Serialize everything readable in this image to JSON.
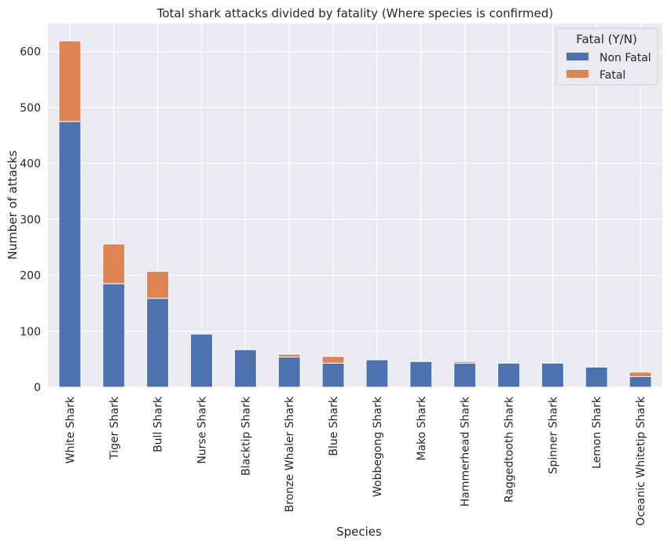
{
  "chart_data": {
    "type": "bar",
    "stacked": true,
    "title": "Total shark attacks divided by fatality (Where species is confirmed)",
    "xlabel": "Species",
    "ylabel": "Number of attacks",
    "ylim": [
      0,
      650
    ],
    "yticks": [
      0,
      100,
      200,
      300,
      400,
      500,
      600
    ],
    "grid": true,
    "legend": {
      "title": "Fatal (Y/N)",
      "placement": "top-right"
    },
    "categories": [
      "White Shark",
      "Tiger Shark",
      "Bull Shark",
      "Nurse Shark",
      "Blacktip Shark",
      "Bronze Whaler Shark",
      "Blue Shark",
      "Wobbegong Shark",
      "Mako Shark",
      "Hammerhead Shark",
      "Raggedtooth Shark",
      "Spinner Shark",
      "Lemon Shark",
      "Oceanic Whitetip Shark"
    ],
    "series": [
      {
        "name": "Non Fatal",
        "color": "#4c72b0",
        "values": [
          475,
          185,
          159,
          95,
          67,
          54,
          43,
          49,
          46,
          43,
          43,
          43,
          36,
          19
        ]
      },
      {
        "name": "Fatal",
        "color": "#dd8452",
        "values": [
          144,
          71,
          48,
          0,
          0,
          5,
          12,
          0,
          0,
          3,
          0,
          0,
          0,
          8
        ]
      }
    ]
  }
}
